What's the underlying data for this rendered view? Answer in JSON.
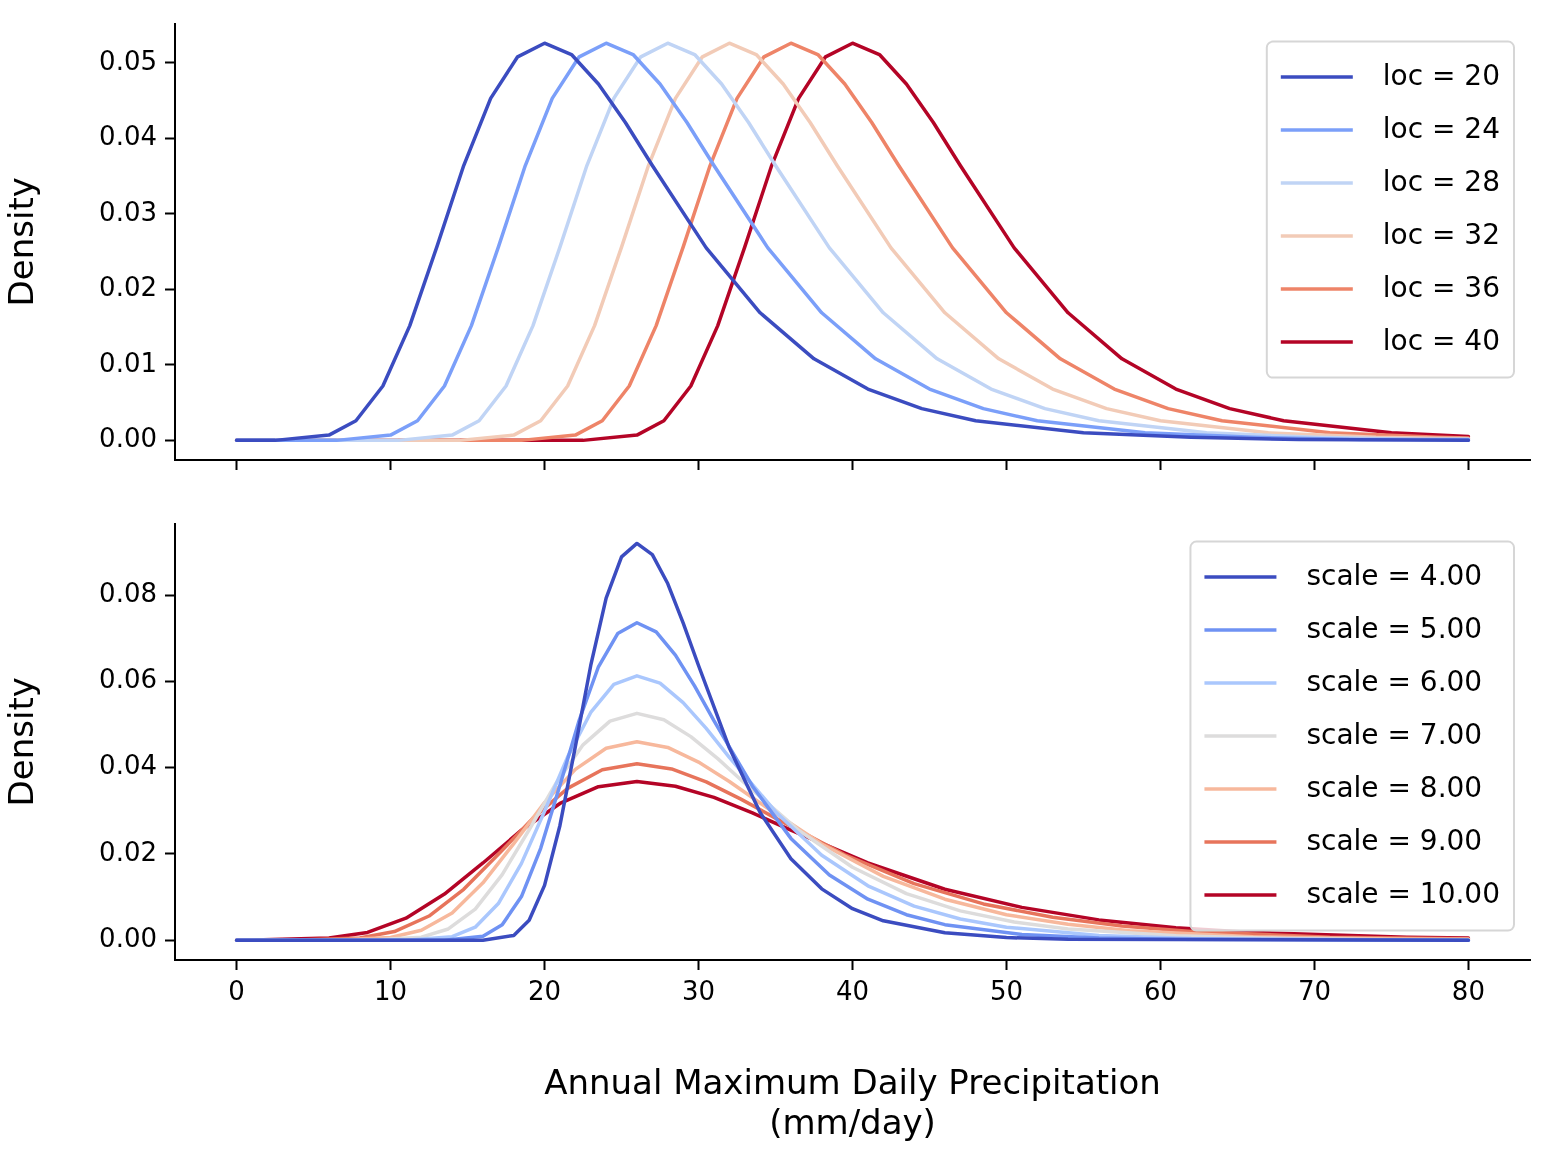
{
  "chart_data": [
    {
      "type": "line",
      "ylabel": "Density",
      "xlim": [
        -4,
        84
      ],
      "xticks": [
        0,
        10,
        20,
        30,
        40,
        50,
        60,
        70,
        80
      ],
      "ylim": [
        -0.0026,
        0.0552
      ],
      "yticks": [
        {
          "value": 0,
          "label": "0.00"
        },
        0.01,
        0.02,
        0.03,
        0.04,
        0.05
      ],
      "tick_labels": "y",
      "grid": false,
      "legend": "top right",
      "marker": "none",
      "line_style": "solid",
      "series": [
        {
          "name": "loc = 20",
          "color": "#3b4cc0",
          "x": [
            0,
            2.5,
            6,
            7.75,
            9.5,
            11.25,
            13,
            14.75,
            16.5,
            18.25,
            20,
            21.75,
            23.5,
            25.25,
            27,
            30.5,
            34,
            37.5,
            41,
            44.5,
            48,
            55,
            62,
            69,
            80
          ],
          "values": [
            0,
            0,
            0.0007,
            0.0026,
            0.0072,
            0.0152,
            0.0256,
            0.0364,
            0.0453,
            0.0508,
            0.0526,
            0.0511,
            0.0472,
            0.0421,
            0.0364,
            0.0255,
            0.0169,
            0.0108,
            0.0068,
            0.0042,
            0.0026,
            0.001,
            0.0004,
            0.0001,
            0
          ]
        },
        {
          "name": "loc = 24",
          "color": "#7b9ff9",
          "x": [
            0,
            6.5,
            10,
            11.75,
            13.5,
            15.25,
            17,
            18.75,
            20.5,
            22.25,
            24,
            25.75,
            27.5,
            29.25,
            31,
            34.5,
            38,
            41.5,
            45,
            48.5,
            52,
            59,
            66,
            73,
            80
          ],
          "values": [
            0,
            0,
            0.0007,
            0.0026,
            0.0072,
            0.0152,
            0.0256,
            0.0364,
            0.0453,
            0.0508,
            0.0526,
            0.0511,
            0.0472,
            0.0421,
            0.0364,
            0.0255,
            0.0169,
            0.0108,
            0.0068,
            0.0042,
            0.0026,
            0.001,
            0.0004,
            0.0001,
            0.0001
          ]
        },
        {
          "name": "loc = 28",
          "color": "#c0d4f5",
          "x": [
            0,
            10.5,
            14,
            15.75,
            17.5,
            19.25,
            21,
            22.75,
            24.5,
            26.25,
            28,
            29.75,
            31.5,
            33.25,
            35,
            38.5,
            42,
            45.5,
            49,
            52.5,
            56,
            63,
            70,
            77,
            80
          ],
          "values": [
            0,
            0,
            0.0007,
            0.0026,
            0.0072,
            0.0152,
            0.0256,
            0.0364,
            0.0453,
            0.0508,
            0.0526,
            0.0511,
            0.0472,
            0.0421,
            0.0364,
            0.0255,
            0.0169,
            0.0108,
            0.0068,
            0.0042,
            0.0026,
            0.001,
            0.0004,
            0.0001,
            0.0001
          ]
        },
        {
          "name": "loc = 32",
          "color": "#f2cbb7",
          "x": [
            0,
            14.5,
            18,
            19.75,
            21.5,
            23.25,
            25,
            26.75,
            28.5,
            30.25,
            32,
            33.75,
            35.5,
            37.25,
            39,
            42.5,
            46,
            49.5,
            53,
            56.5,
            60,
            67,
            74,
            80
          ],
          "values": [
            0,
            0,
            0.0007,
            0.0026,
            0.0072,
            0.0152,
            0.0256,
            0.0364,
            0.0453,
            0.0508,
            0.0526,
            0.0511,
            0.0472,
            0.0421,
            0.0364,
            0.0255,
            0.0169,
            0.0108,
            0.0068,
            0.0042,
            0.0026,
            0.001,
            0.0004,
            0.0002
          ]
        },
        {
          "name": "loc = 36",
          "color": "#ee8468",
          "x": [
            0,
            18.5,
            22,
            23.75,
            25.5,
            27.25,
            29,
            30.75,
            32.5,
            34.25,
            36,
            37.75,
            39.5,
            41.25,
            43,
            46.5,
            50,
            53.5,
            57,
            60.5,
            64,
            71,
            78,
            80
          ],
          "values": [
            0,
            0,
            0.0007,
            0.0026,
            0.0072,
            0.0152,
            0.0256,
            0.0364,
            0.0453,
            0.0508,
            0.0526,
            0.0511,
            0.0472,
            0.0421,
            0.0364,
            0.0255,
            0.0169,
            0.0108,
            0.0068,
            0.0042,
            0.0026,
            0.001,
            0.0004,
            0.0003
          ]
        },
        {
          "name": "loc = 40",
          "color": "#b40426",
          "x": [
            0,
            22.5,
            26,
            27.75,
            29.5,
            31.25,
            33,
            34.75,
            36.5,
            38.25,
            40,
            41.75,
            43.5,
            45.25,
            47,
            50.5,
            54,
            57.5,
            61,
            64.5,
            68,
            75,
            80
          ],
          "values": [
            0,
            0,
            0.0007,
            0.0026,
            0.0072,
            0.0152,
            0.0256,
            0.0364,
            0.0453,
            0.0508,
            0.0526,
            0.0511,
            0.0472,
            0.0421,
            0.0364,
            0.0255,
            0.0169,
            0.0108,
            0.0068,
            0.0042,
            0.0026,
            0.001,
            0.0005
          ]
        }
      ]
    },
    {
      "type": "line",
      "xlabel": "Annual Maximum Daily Precipitation\n(mm/day)",
      "ylabel": "Density",
      "xlim": [
        -4,
        84
      ],
      "xticks": [
        0,
        10,
        20,
        30,
        40,
        50,
        60,
        70,
        80
      ],
      "ylim": [
        -0.0046,
        0.0966
      ],
      "yticks": [
        {
          "value": 0,
          "label": "0.00"
        },
        0.02,
        0.04,
        0.06,
        0.08
      ],
      "grid": false,
      "legend": "top right",
      "marker": "none",
      "line_style": "solid",
      "series": [
        {
          "name": "scale = 4.00",
          "color": "#3b4cc0",
          "x": [
            0,
            16,
            18,
            19,
            20,
            21,
            22,
            23,
            24,
            25,
            26,
            27,
            28,
            29,
            30,
            32,
            34,
            36,
            38,
            40,
            42,
            46,
            50,
            54,
            80
          ],
          "values": [
            0,
            0,
            0.0011,
            0.0046,
            0.0127,
            0.0266,
            0.0449,
            0.0637,
            0.0793,
            0.0889,
            0.092,
            0.0894,
            0.0827,
            0.0736,
            0.0637,
            0.0446,
            0.0296,
            0.0189,
            0.0119,
            0.0073,
            0.0045,
            0.0017,
            0.0006,
            0.0002,
            0
          ]
        },
        {
          "name": "scale = 5.00",
          "color": "#6f92f3",
          "x": [
            0,
            13.5,
            16,
            17.25,
            18.5,
            19.75,
            21,
            22.25,
            23.5,
            24.75,
            26,
            27.25,
            28.5,
            29.75,
            31,
            33.5,
            36,
            38.5,
            41,
            43.5,
            46,
            51,
            56,
            61,
            80
          ],
          "values": [
            0,
            0,
            0.0009,
            0.0036,
            0.0101,
            0.0213,
            0.0359,
            0.051,
            0.0634,
            0.0711,
            0.0736,
            0.0715,
            0.0661,
            0.0589,
            0.0509,
            0.0357,
            0.0236,
            0.0151,
            0.0095,
            0.0059,
            0.0036,
            0.0013,
            0.0005,
            0.0002,
            0
          ]
        },
        {
          "name": "scale = 6.00",
          "color": "#aac7fd",
          "x": [
            0,
            11,
            14,
            15.5,
            17,
            18.5,
            20,
            21.5,
            23,
            24.5,
            26,
            27.5,
            29,
            30.5,
            32,
            35,
            38,
            41,
            44,
            47,
            50,
            56,
            62,
            68,
            80
          ],
          "values": [
            0,
            0,
            0.0008,
            0.003,
            0.0085,
            0.0178,
            0.0299,
            0.0425,
            0.0528,
            0.0593,
            0.0613,
            0.0596,
            0.0551,
            0.0491,
            0.0424,
            0.0298,
            0.0197,
            0.0126,
            0.0079,
            0.0049,
            0.003,
            0.0011,
            0.0004,
            0.0002,
            0
          ]
        },
        {
          "name": "scale = 7.00",
          "color": "#dddcdc",
          "x": [
            0,
            8.5,
            12,
            13.75,
            15.5,
            17.25,
            19,
            20.75,
            22.5,
            24.25,
            26,
            27.75,
            29.5,
            31.25,
            33,
            36.5,
            40,
            43.5,
            47,
            50.5,
            54,
            61,
            68,
            75,
            80
          ],
          "values": [
            0,
            0,
            0.0007,
            0.0026,
            0.0072,
            0.0152,
            0.0256,
            0.0364,
            0.0453,
            0.0508,
            0.0526,
            0.0511,
            0.0472,
            0.0421,
            0.0364,
            0.0255,
            0.0169,
            0.0108,
            0.0068,
            0.0042,
            0.0026,
            0.001,
            0.0004,
            0.0001,
            0.0001
          ]
        },
        {
          "name": "scale = 8.00",
          "color": "#f7b89c",
          "x": [
            0,
            6,
            10,
            12,
            14,
            16,
            18,
            20,
            22,
            24,
            26,
            28,
            30,
            32,
            34,
            38,
            42,
            46,
            50,
            54,
            58,
            66,
            74,
            80
          ],
          "values": [
            0,
            0,
            0.0006,
            0.0023,
            0.0063,
            0.0133,
            0.0224,
            0.0319,
            0.0396,
            0.0445,
            0.046,
            0.0447,
            0.0413,
            0.0368,
            0.0318,
            0.0223,
            0.0148,
            0.0095,
            0.0059,
            0.0037,
            0.0022,
            0.0008,
            0.0003,
            0.0002
          ]
        },
        {
          "name": "scale = 9.00",
          "color": "#e7745b",
          "x": [
            0,
            3.5,
            8,
            10.25,
            12.5,
            14.75,
            17,
            19.25,
            21.5,
            23.75,
            26,
            28.25,
            30.5,
            32.75,
            35,
            39.5,
            44,
            48.5,
            53,
            57.5,
            62,
            71,
            80
          ],
          "values": [
            0,
            0,
            0.0005,
            0.002,
            0.0056,
            0.0118,
            0.0199,
            0.0283,
            0.0352,
            0.0395,
            0.0409,
            0.0397,
            0.0367,
            0.0327,
            0.0283,
            0.0198,
            0.0131,
            0.0084,
            0.0053,
            0.0033,
            0.002,
            0.0007,
            0.0003
          ]
        },
        {
          "name": "scale = 10.00",
          "color": "#b40426",
          "x": [
            0,
            1,
            6,
            8.5,
            11,
            13.5,
            16,
            18.5,
            21,
            23.5,
            26,
            28.5,
            31,
            33.5,
            36,
            41,
            46,
            51,
            56,
            61,
            66,
            76,
            80
          ],
          "values": [
            0,
            0,
            0.0005,
            0.0018,
            0.0051,
            0.0107,
            0.0179,
            0.0255,
            0.0317,
            0.0356,
            0.0368,
            0.0357,
            0.0331,
            0.0295,
            0.0255,
            0.0179,
            0.0118,
            0.0076,
            0.0047,
            0.0029,
            0.0018,
            0.0007,
            0.0005
          ]
        }
      ]
    }
  ]
}
